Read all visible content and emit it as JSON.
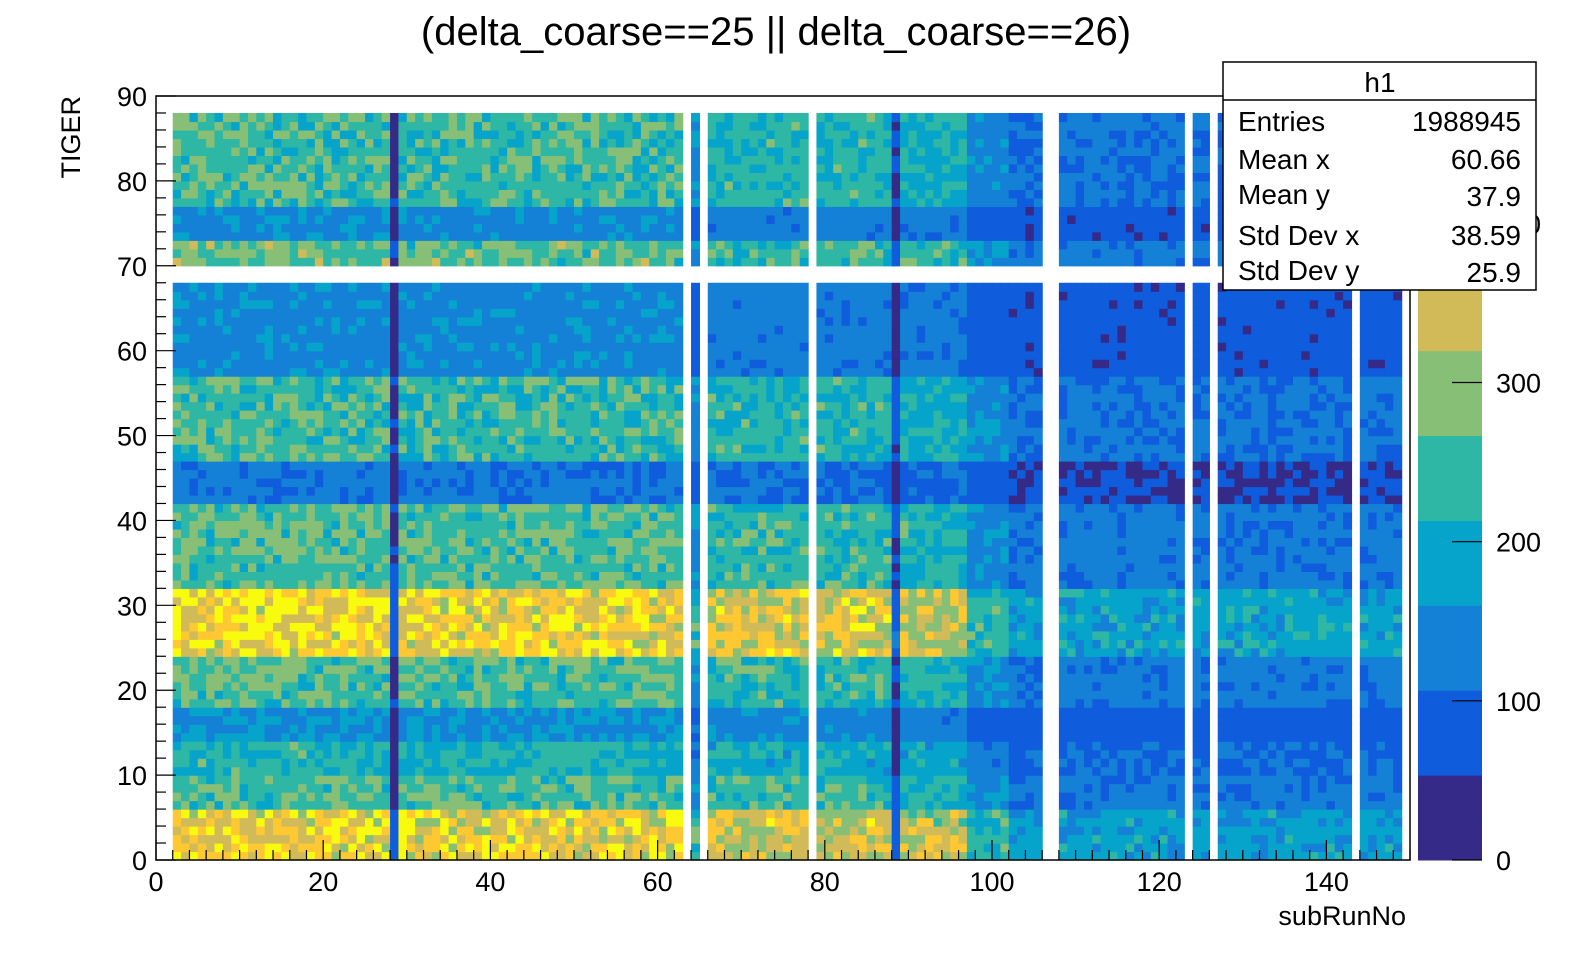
{
  "chart_data": {
    "type": "heatmap",
    "title": "(delta_coarse==25 || delta_coarse==26)",
    "xlabel": "subRunNo",
    "ylabel": "TIGER",
    "xlim": [
      0,
      150
    ],
    "ylim": [
      0,
      90
    ],
    "x_ticks": [
      "0",
      "20",
      "40",
      "60",
      "80",
      "100",
      "120",
      "140"
    ],
    "y_ticks": [
      "0",
      "10",
      "20",
      "30",
      "40",
      "50",
      "60",
      "70",
      "80",
      "90"
    ],
    "z_range": [
      0,
      480
    ],
    "z_ticks": [
      "0",
      "100",
      "200",
      "300",
      "400"
    ],
    "bins": {
      "x_first": 2,
      "x_last": 149,
      "y_first": 0,
      "y_last": 88
    },
    "empty_columns": [
      63,
      65,
      78,
      106,
      107,
      123,
      126,
      143
    ],
    "empty_rows": [
      68,
      69
    ],
    "column_levels": [
      {
        "x_from": 2,
        "x_to": 28,
        "level": 260
      },
      {
        "x_from": 28,
        "x_to": 29,
        "level": 50
      },
      {
        "x_from": 29,
        "x_to": 63,
        "level": 255
      },
      {
        "x_from": 63,
        "x_to": 66,
        "level": 150
      },
      {
        "x_from": 66,
        "x_to": 88,
        "level": 235
      },
      {
        "x_from": 88,
        "x_to": 89,
        "level": 60
      },
      {
        "x_from": 89,
        "x_to": 97,
        "level": 220
      },
      {
        "x_from": 97,
        "x_to": 102,
        "level": 150
      },
      {
        "x_from": 102,
        "x_to": 107,
        "level": 115
      },
      {
        "x_from": 107,
        "x_to": 150,
        "level": 120
      }
    ],
    "row_factors": [
      {
        "y_from": 0,
        "y_to": 6,
        "factor": 1.5
      },
      {
        "y_from": 6,
        "y_to": 10,
        "factor": 1.0
      },
      {
        "y_from": 10,
        "y_to": 14,
        "factor": 0.85
      },
      {
        "y_from": 14,
        "y_to": 18,
        "factor": 0.6
      },
      {
        "y_from": 18,
        "y_to": 24,
        "factor": 1.0
      },
      {
        "y_from": 24,
        "y_to": 32,
        "factor": 1.55
      },
      {
        "y_from": 32,
        "y_to": 42,
        "factor": 1.0
      },
      {
        "y_from": 42,
        "y_to": 47,
        "factor": 0.45
      },
      {
        "y_from": 47,
        "y_to": 57,
        "factor": 0.95
      },
      {
        "y_from": 57,
        "y_to": 68,
        "factor": 0.55
      },
      {
        "y_from": 70,
        "y_to": 73,
        "factor": 1.05
      },
      {
        "y_from": 73,
        "y_to": 77,
        "factor": 0.55
      },
      {
        "y_from": 77,
        "y_to": 88,
        "factor": 0.95
      }
    ],
    "colors": [
      "#352a87",
      "#0f5cdd",
      "#1481d6",
      "#06a4ca",
      "#2eb7a4",
      "#87bf77",
      "#d1bb59",
      "#fec832",
      "#f9fb0e"
    ],
    "stats": {
      "name": "h1",
      "rows": [
        {
          "label": "Entries",
          "value": "1988945"
        },
        {
          "label": "Mean x",
          "value": "60.66"
        },
        {
          "label": "Mean y",
          "value": "37.9"
        },
        {
          "label": "Std Dev x",
          "value": "38.59"
        },
        {
          "label": "Std Dev y",
          "value": "25.9"
        }
      ]
    }
  }
}
